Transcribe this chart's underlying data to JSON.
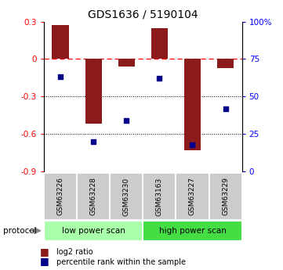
{
  "title": "GDS1636 / 5190104",
  "samples": [
    "GSM63226",
    "GSM63228",
    "GSM63230",
    "GSM63163",
    "GSM63227",
    "GSM63229"
  ],
  "log2_ratio": [
    0.27,
    -0.52,
    -0.06,
    0.25,
    -0.73,
    -0.07
  ],
  "percentile_rank": [
    63,
    20,
    34,
    62,
    18,
    42
  ],
  "left_ylim": [
    -0.9,
    0.3
  ],
  "right_ylim": [
    0,
    100
  ],
  "left_yticks": [
    -0.9,
    -0.6,
    -0.3,
    0,
    0.3
  ],
  "right_yticks": [
    0,
    25,
    50,
    75,
    100
  ],
  "bar_color": "#8B1A1A",
  "dot_color": "#00008B",
  "dotted_lines": [
    -0.3,
    -0.6
  ],
  "protocol_groups": [
    {
      "label": "low power scan",
      "indices": [
        0,
        1,
        2
      ],
      "color": "#aaffaa"
    },
    {
      "label": "high power scan",
      "indices": [
        3,
        4,
        5
      ],
      "color": "#44dd44"
    }
  ],
  "legend_bar_label": "log2 ratio",
  "legend_dot_label": "percentile rank within the sample",
  "protocol_label": "protocol",
  "bar_width": 0.5,
  "sample_box_color": "#cccccc",
  "fig_width": 3.61,
  "fig_height": 3.45,
  "dpi": 100
}
